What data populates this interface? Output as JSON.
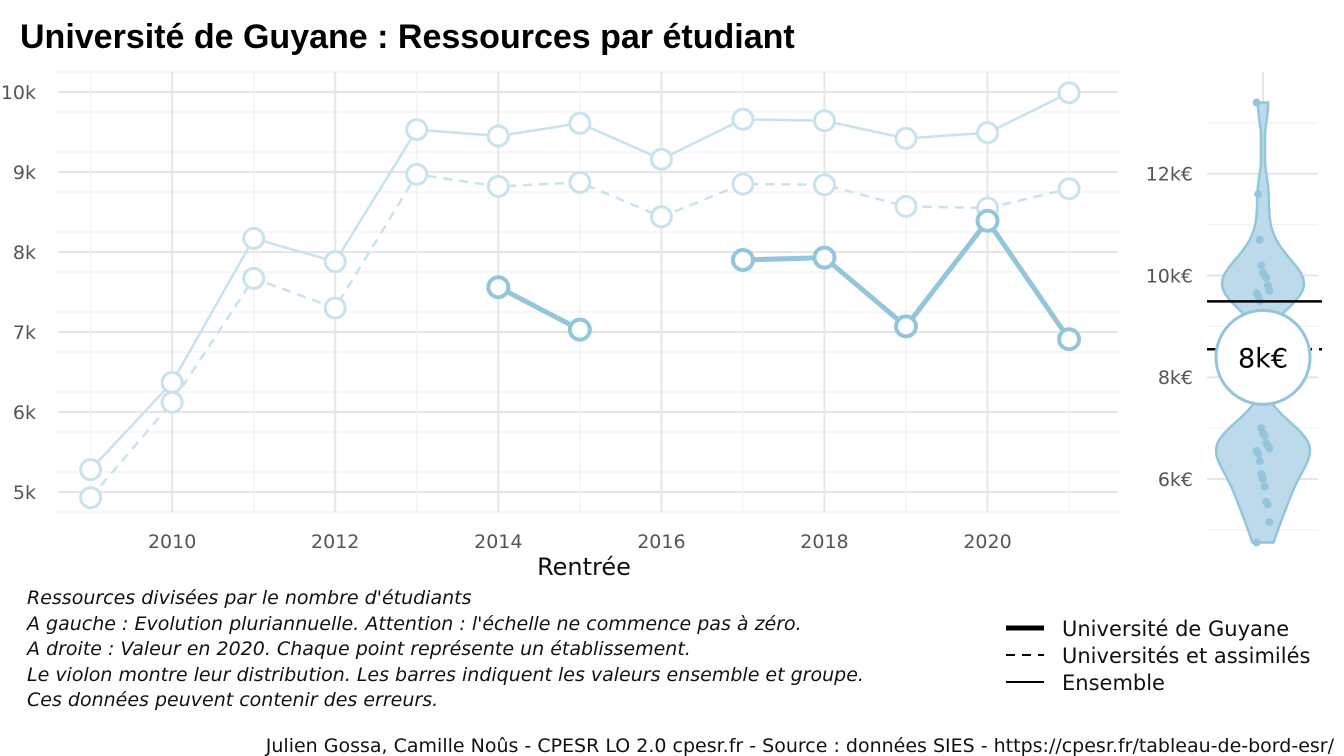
{
  "chart_data": [
    {
      "type": "line",
      "title": "Université de Guyane  :  Ressources par étudiant",
      "xlabel": "Rentrée",
      "ylabel": "",
      "xlim": [
        2008.6,
        2021.6
      ],
      "ylim": [
        4750,
        10250
      ],
      "x_ticks": [
        2010,
        2012,
        2014,
        2016,
        2018,
        2020
      ],
      "x_tick_labels": [
        "2010",
        "2012",
        "2014",
        "2016",
        "2018",
        "2020"
      ],
      "y_ticks": [
        5000,
        6000,
        7000,
        8000,
        9000,
        10000
      ],
      "y_tick_labels": [
        "5k",
        "6k",
        "7k",
        "8k",
        "9k",
        "10k"
      ],
      "grid": true,
      "series": [
        {
          "name": "Ensemble",
          "style": "solid-thin",
          "color": "#c8e2ee",
          "x": [
            2009,
            2010,
            2011,
            2012,
            2013,
            2014,
            2015,
            2016,
            2017,
            2018,
            2019,
            2020,
            2021
          ],
          "values": [
            5280,
            6370,
            8170,
            7880,
            9530,
            9450,
            9610,
            9160,
            9660,
            9640,
            9420,
            9490,
            9990
          ]
        },
        {
          "name": "Universités et assimilés",
          "style": "dashed",
          "color": "#c8e2ee",
          "x": [
            2009,
            2010,
            2011,
            2012,
            2013,
            2014,
            2015,
            2016,
            2017,
            2018,
            2019,
            2020,
            2021
          ],
          "values": [
            4930,
            6120,
            7670,
            7300,
            8970,
            8820,
            8870,
            8440,
            8850,
            8840,
            8570,
            8550,
            8790
          ]
        },
        {
          "name": "Université de Guyane",
          "style": "solid-thick",
          "color": "#93c6dd",
          "x": [
            2014,
            2015,
            2016,
            2017,
            2018,
            2019,
            2020,
            2021
          ],
          "values": [
            7560,
            7030,
            null,
            7900,
            7930,
            7070,
            8390,
            6910
          ]
        }
      ]
    },
    {
      "type": "violin",
      "ylim": [
        4800,
        14000
      ],
      "y_ticks": [
        6000,
        8000,
        10000,
        12000
      ],
      "y_tick_labels": [
        "6k€",
        "8k€",
        "10k€",
        "12k€"
      ],
      "grid": true,
      "fill_color": "#bcdaea",
      "point_color": "#93c6dd",
      "points": [
        13400,
        11600,
        10700,
        10200,
        10050,
        10000,
        9950,
        9800,
        9700,
        9650,
        9600,
        9500,
        7000,
        6900,
        6850,
        6700,
        6650,
        6600,
        6550,
        6500,
        6350,
        6100,
        6000,
        5850,
        5550,
        5500,
        5150,
        4750
      ],
      "ensemble_value": 9490,
      "group_value": 8550,
      "highlight_value": 8390,
      "highlight_label": "8k€"
    }
  ],
  "caption_lines": [
    "Ressources divisées par le nombre d'étudiants",
    "A gauche : Evolution pluriannuelle. Attention : l'échelle ne commence pas à zéro.",
    "A droite : Valeur en 2020. Chaque point représente un établissement.",
    "Le violon montre leur distribution. Les barres indiquent les valeurs ensemble et groupe.",
    "Ces données peuvent contenir des erreurs."
  ],
  "legend": [
    {
      "label": "Université de Guyane",
      "style": "solid-thick"
    },
    {
      "label": "Universités et assimilés",
      "style": "dashed"
    },
    {
      "label": "Ensemble",
      "style": "solid"
    }
  ],
  "credit": "Julien Gossa, Camille Noûs - CPESR LO 2.0 cpesr.fr - Source : données SIES - https://cpesr.fr/tableau-de-bord-esr/"
}
